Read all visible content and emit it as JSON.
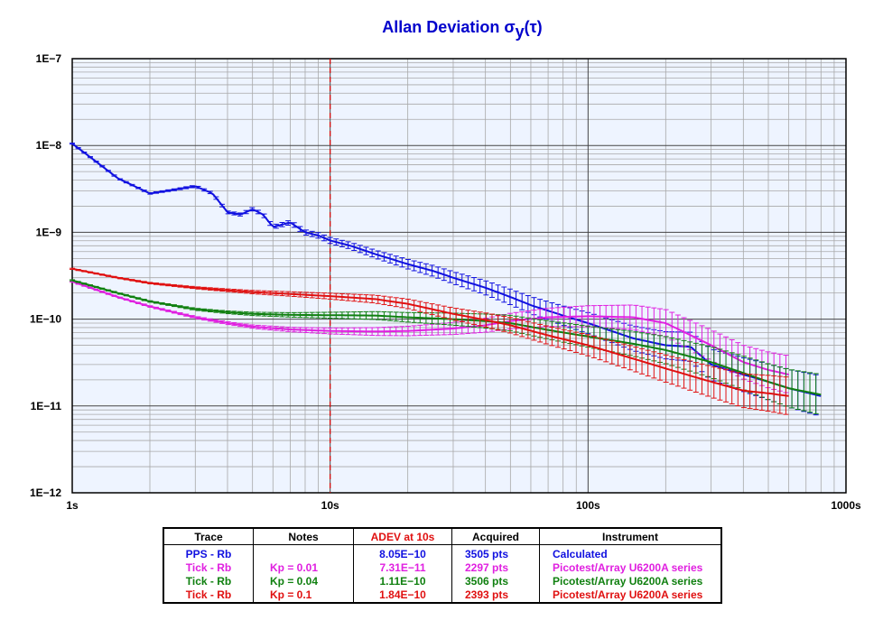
{
  "chart_data": {
    "type": "line",
    "title": "Allan Deviation σ",
    "title_sub": "y",
    "title_suffix": "(τ)",
    "xscale": "log",
    "yscale": "log",
    "xlim": [
      1,
      1000
    ],
    "ylim": [
      1e-12,
      1e-07
    ],
    "x_tick_labels": [
      "1s",
      "10s",
      "100s",
      "1000s"
    ],
    "y_tick_labels": [
      "1E−7",
      "1E−8",
      "1E−9",
      "1E−10",
      "1E−11",
      "1E−12"
    ],
    "grid": true,
    "marker_line": {
      "x": 10,
      "style": "dashed",
      "color": "#e00000"
    },
    "series": [
      {
        "color": "#1010e0",
        "x": [
          1,
          1.2,
          1.5,
          2,
          2.5,
          3,
          3.5,
          4,
          4.5,
          5,
          5.5,
          6,
          7,
          8,
          9,
          10,
          12,
          15,
          20,
          25,
          30,
          40,
          50,
          60,
          70,
          80,
          100,
          120,
          150,
          200,
          250,
          300,
          400,
          500,
          600,
          800
        ],
        "y": [
          1.05e-08,
          7e-09,
          4.2e-09,
          2.8e-09,
          3.1e-09,
          3.4e-09,
          2.8e-09,
          1.7e-09,
          1.6e-09,
          1.85e-09,
          1.6e-09,
          1.15e-09,
          1.3e-09,
          1e-09,
          9.2e-10,
          8.05e-10,
          7e-10,
          5.6e-10,
          4.3e-10,
          3.6e-10,
          3e-10,
          2.3e-10,
          1.8e-10,
          1.45e-10,
          1.25e-10,
          1.1e-10,
          9e-11,
          7.5e-11,
          6e-11,
          5e-11,
          4.8e-11,
          3e-11,
          2.3e-11,
          1.9e-11,
          1.6e-11,
          1.3e-11
        ]
      },
      {
        "color": "#e020e0",
        "x": [
          1,
          1.5,
          2,
          3,
          4,
          5,
          7,
          10,
          15,
          20,
          30,
          40,
          50,
          70,
          100,
          150,
          200,
          300,
          400,
          500,
          600
        ],
        "y": [
          2.7e-10,
          1.8e-10,
          1.4e-10,
          1.05e-10,
          9e-11,
          8.2e-11,
          7.6e-11,
          7.31e-11,
          7.2e-11,
          7.3e-11,
          7.8e-11,
          8.5e-11,
          9.5e-11,
          1.05e-10,
          1.08e-10,
          1.05e-10,
          9e-11,
          5e-11,
          3.2e-11,
          2.6e-11,
          2.3e-11
        ]
      },
      {
        "color": "#108010",
        "x": [
          1,
          1.5,
          2,
          3,
          4,
          5,
          7,
          10,
          15,
          20,
          30,
          40,
          50,
          70,
          100,
          150,
          200,
          300,
          400,
          500,
          600,
          800
        ],
        "y": [
          2.8e-10,
          2e-10,
          1.6e-10,
          1.3e-10,
          1.2e-10,
          1.15e-10,
          1.12e-10,
          1.11e-10,
          1.1e-10,
          1.05e-10,
          1e-10,
          9.5e-11,
          9e-11,
          7.5e-11,
          6.3e-11,
          5.2e-11,
          4.4e-11,
          3.2e-11,
          2.4e-11,
          1.9e-11,
          1.6e-11,
          1.35e-11
        ]
      },
      {
        "color": "#e01010",
        "x": [
          1,
          1.5,
          2,
          3,
          4,
          5,
          7,
          10,
          15,
          20,
          30,
          40,
          50,
          70,
          100,
          150,
          200,
          300,
          400,
          500,
          600
        ],
        "y": [
          3.8e-10,
          3e-10,
          2.6e-10,
          2.3e-10,
          2.15e-10,
          2.05e-10,
          1.95e-10,
          1.84e-10,
          1.7e-10,
          1.5e-10,
          1.15e-10,
          9.8e-11,
          8.5e-11,
          6.5e-11,
          5e-11,
          3.5e-11,
          2.7e-11,
          1.9e-11,
          1.5e-11,
          1.4e-11,
          1.3e-11
        ]
      }
    ]
  },
  "table": {
    "headers": {
      "trace": "Trace",
      "notes": "Notes",
      "adev": "ADEV at 10s",
      "acquired": "Acquired",
      "instrument": "Instrument"
    },
    "rows": [
      {
        "trace": "PPS - Rb",
        "notes": "",
        "adev": "8.05E−10",
        "acquired": "3505 pts",
        "instrument": "Calculated",
        "color": "#1010e0"
      },
      {
        "trace": "Tick - Rb",
        "notes": "Kp = 0.01",
        "adev": "7.31E−11",
        "acquired": "2297 pts",
        "instrument": "Picotest/Array U6200A series",
        "color": "#e020e0"
      },
      {
        "trace": "Tick - Rb",
        "notes": "Kp = 0.04",
        "adev": "1.11E−10",
        "acquired": "3506 pts",
        "instrument": "Picotest/Array U6200A series",
        "color": "#108010"
      },
      {
        "trace": "Tick - Rb",
        "notes": "Kp = 0.1",
        "adev": "1.84E−10",
        "acquired": "2393 pts",
        "instrument": "Picotest/Array U6200A series",
        "color": "#e01010"
      }
    ]
  }
}
